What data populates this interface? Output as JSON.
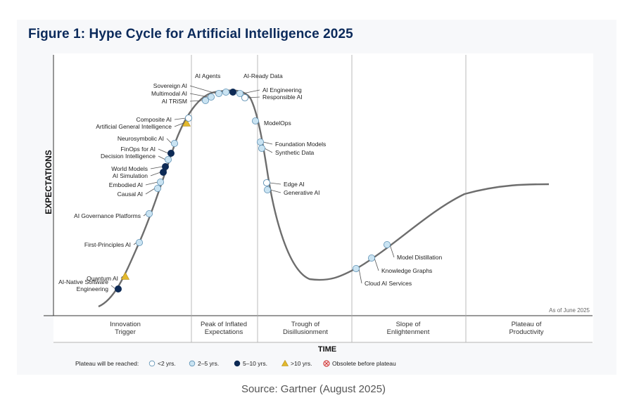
{
  "figure_title": "Figure 1: Hype Cycle for Artificial Intelligence 2025",
  "source": "Source: Gartner (August 2025)",
  "colors": {
    "title": "#0b2a5b",
    "curve": "#6d6d6d",
    "under_2": "#ffffff",
    "two_to_five": "#c9e3f2",
    "five_to_ten": "#0d2a55",
    "over_10": "#e3b92d",
    "obsolete": "#d13a3a"
  },
  "chart_data": {
    "type": "hype_cycle",
    "title": "Hype Cycle for Artificial Intelligence 2025",
    "ylabel": "EXPECTATIONS",
    "xlabel": "TIME",
    "as_of": "As of June 2025",
    "phases": [
      {
        "label": [
          "Innovation",
          "Trigger"
        ]
      },
      {
        "label": [
          "Peak of Inflated",
          "Expectations"
        ]
      },
      {
        "label": [
          "Trough of",
          "Disillusionment"
        ]
      },
      {
        "label": [
          "Slope of",
          "Enlightenment"
        ]
      },
      {
        "label": [
          "Plateau of",
          "Productivity"
        ]
      }
    ],
    "legend": {
      "title": "Plateau will be reached:",
      "items": [
        {
          "key": "under_2",
          "label": "<2 yrs."
        },
        {
          "key": "two_to_five",
          "label": "2–5 yrs."
        },
        {
          "key": "five_to_ten",
          "label": "5–10 yrs."
        },
        {
          "key": "over_10",
          "label": ">10 yrs."
        },
        {
          "key": "obsolete",
          "label": "Obsolete before plateau"
        }
      ]
    },
    "technologies": [
      {
        "name": "AI-Native Software Engineering",
        "phase": "Innovation Trigger",
        "plateau": "five_to_ten"
      },
      {
        "name": "Quantum AI",
        "phase": "Innovation Trigger",
        "plateau": "over_10"
      },
      {
        "name": "First-Principles AI",
        "phase": "Innovation Trigger",
        "plateau": "two_to_five"
      },
      {
        "name": "AI Governance Platforms",
        "phase": "Innovation Trigger",
        "plateau": "two_to_five"
      },
      {
        "name": "Causal AI",
        "phase": "Innovation Trigger",
        "plateau": "two_to_five"
      },
      {
        "name": "Embodied AI",
        "phase": "Innovation Trigger",
        "plateau": "two_to_five"
      },
      {
        "name": "AI Simulation",
        "phase": "Innovation Trigger",
        "plateau": "five_to_ten"
      },
      {
        "name": "World Models",
        "phase": "Innovation Trigger",
        "plateau": "five_to_ten"
      },
      {
        "name": "Decision Intelligence",
        "phase": "Innovation Trigger",
        "plateau": "two_to_five"
      },
      {
        "name": "FinOps for AI",
        "phase": "Innovation Trigger",
        "plateau": "five_to_ten"
      },
      {
        "name": "Neurosymbolic AI",
        "phase": "Innovation Trigger",
        "plateau": "two_to_five"
      },
      {
        "name": "Artificial General Intelligence",
        "phase": "Innovation Trigger",
        "plateau": "over_10"
      },
      {
        "name": "Composite AI",
        "phase": "Innovation Trigger",
        "plateau": "under_2"
      },
      {
        "name": "AI TRiSM",
        "phase": "Peak of Inflated Expectations",
        "plateau": "two_to_five"
      },
      {
        "name": "Multimodal AI",
        "phase": "Peak of Inflated Expectations",
        "plateau": "two_to_five"
      },
      {
        "name": "Sovereign AI",
        "phase": "Peak of Inflated Expectations",
        "plateau": "two_to_five"
      },
      {
        "name": "AI Agents",
        "phase": "Peak of Inflated Expectations",
        "plateau": "two_to_five"
      },
      {
        "name": "AI-Ready Data",
        "phase": "Peak of Inflated Expectations",
        "plateau": "five_to_ten"
      },
      {
        "name": "AI Engineering",
        "phase": "Peak of Inflated Expectations",
        "plateau": "two_to_five"
      },
      {
        "name": "Responsible AI",
        "phase": "Peak of Inflated Expectations",
        "plateau": "under_2"
      },
      {
        "name": "ModelOps",
        "phase": "Trough of Disillusionment",
        "plateau": "two_to_five"
      },
      {
        "name": "Foundation Models",
        "phase": "Trough of Disillusionment",
        "plateau": "two_to_five"
      },
      {
        "name": "Synthetic Data",
        "phase": "Trough of Disillusionment",
        "plateau": "two_to_five"
      },
      {
        "name": "Edge AI",
        "phase": "Trough of Disillusionment",
        "plateau": "under_2"
      },
      {
        "name": "Generative AI",
        "phase": "Trough of Disillusionment",
        "plateau": "two_to_five"
      },
      {
        "name": "Cloud AI Services",
        "phase": "Slope of Enlightenment",
        "plateau": "two_to_five"
      },
      {
        "name": "Knowledge Graphs",
        "phase": "Slope of Enlightenment",
        "plateau": "two_to_five"
      },
      {
        "name": "Model Distillation",
        "phase": "Slope of Enlightenment",
        "plateau": "two_to_five"
      }
    ]
  }
}
